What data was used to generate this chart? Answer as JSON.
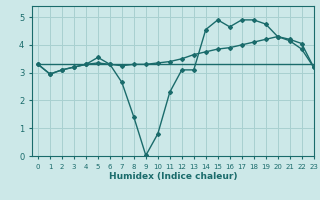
{
  "xlabel": "Humidex (Indice chaleur)",
  "ylabel": "",
  "bg_color": "#cce8e8",
  "grid_color": "#a8d0d0",
  "line_color": "#1a6b6b",
  "xlim": [
    -0.5,
    23
  ],
  "ylim": [
    0,
    5.4
  ],
  "xticks": [
    0,
    1,
    2,
    3,
    4,
    5,
    6,
    7,
    8,
    9,
    10,
    11,
    12,
    13,
    14,
    15,
    16,
    17,
    18,
    19,
    20,
    21,
    22,
    23
  ],
  "yticks": [
    0,
    1,
    2,
    3,
    4,
    5
  ],
  "line1_x": [
    0,
    1,
    2,
    3,
    4,
    5,
    6,
    7,
    8,
    9,
    10,
    11,
    12,
    13,
    14,
    15,
    16,
    17,
    18,
    19,
    20,
    21,
    22,
    23
  ],
  "line1_y": [
    3.3,
    3.3,
    3.3,
    3.3,
    3.3,
    3.3,
    3.3,
    3.3,
    3.3,
    3.3,
    3.3,
    3.3,
    3.3,
    3.3,
    3.3,
    3.3,
    3.3,
    3.3,
    3.3,
    3.3,
    3.3,
    3.3,
    3.3,
    3.3
  ],
  "line2_x": [
    0,
    1,
    2,
    3,
    4,
    5,
    6,
    7,
    8,
    9,
    10,
    11,
    12,
    13,
    14,
    15,
    16,
    17,
    18,
    19,
    20,
    21,
    22,
    23
  ],
  "line2_y": [
    3.3,
    2.95,
    3.1,
    3.2,
    3.3,
    3.55,
    3.3,
    2.65,
    1.4,
    0.02,
    0.8,
    2.3,
    3.1,
    3.1,
    4.55,
    4.9,
    4.65,
    4.9,
    4.9,
    4.75,
    4.3,
    4.15,
    3.85,
    3.2
  ],
  "line3_x": [
    0,
    1,
    2,
    3,
    4,
    5,
    6,
    7,
    8,
    9,
    10,
    11,
    12,
    13,
    14,
    15,
    16,
    17,
    18,
    19,
    20,
    21,
    22,
    23
  ],
  "line3_y": [
    3.3,
    2.95,
    3.1,
    3.2,
    3.3,
    3.35,
    3.3,
    3.25,
    3.3,
    3.3,
    3.35,
    3.4,
    3.5,
    3.65,
    3.75,
    3.85,
    3.9,
    4.0,
    4.1,
    4.2,
    4.3,
    4.2,
    4.05,
    3.2
  ]
}
